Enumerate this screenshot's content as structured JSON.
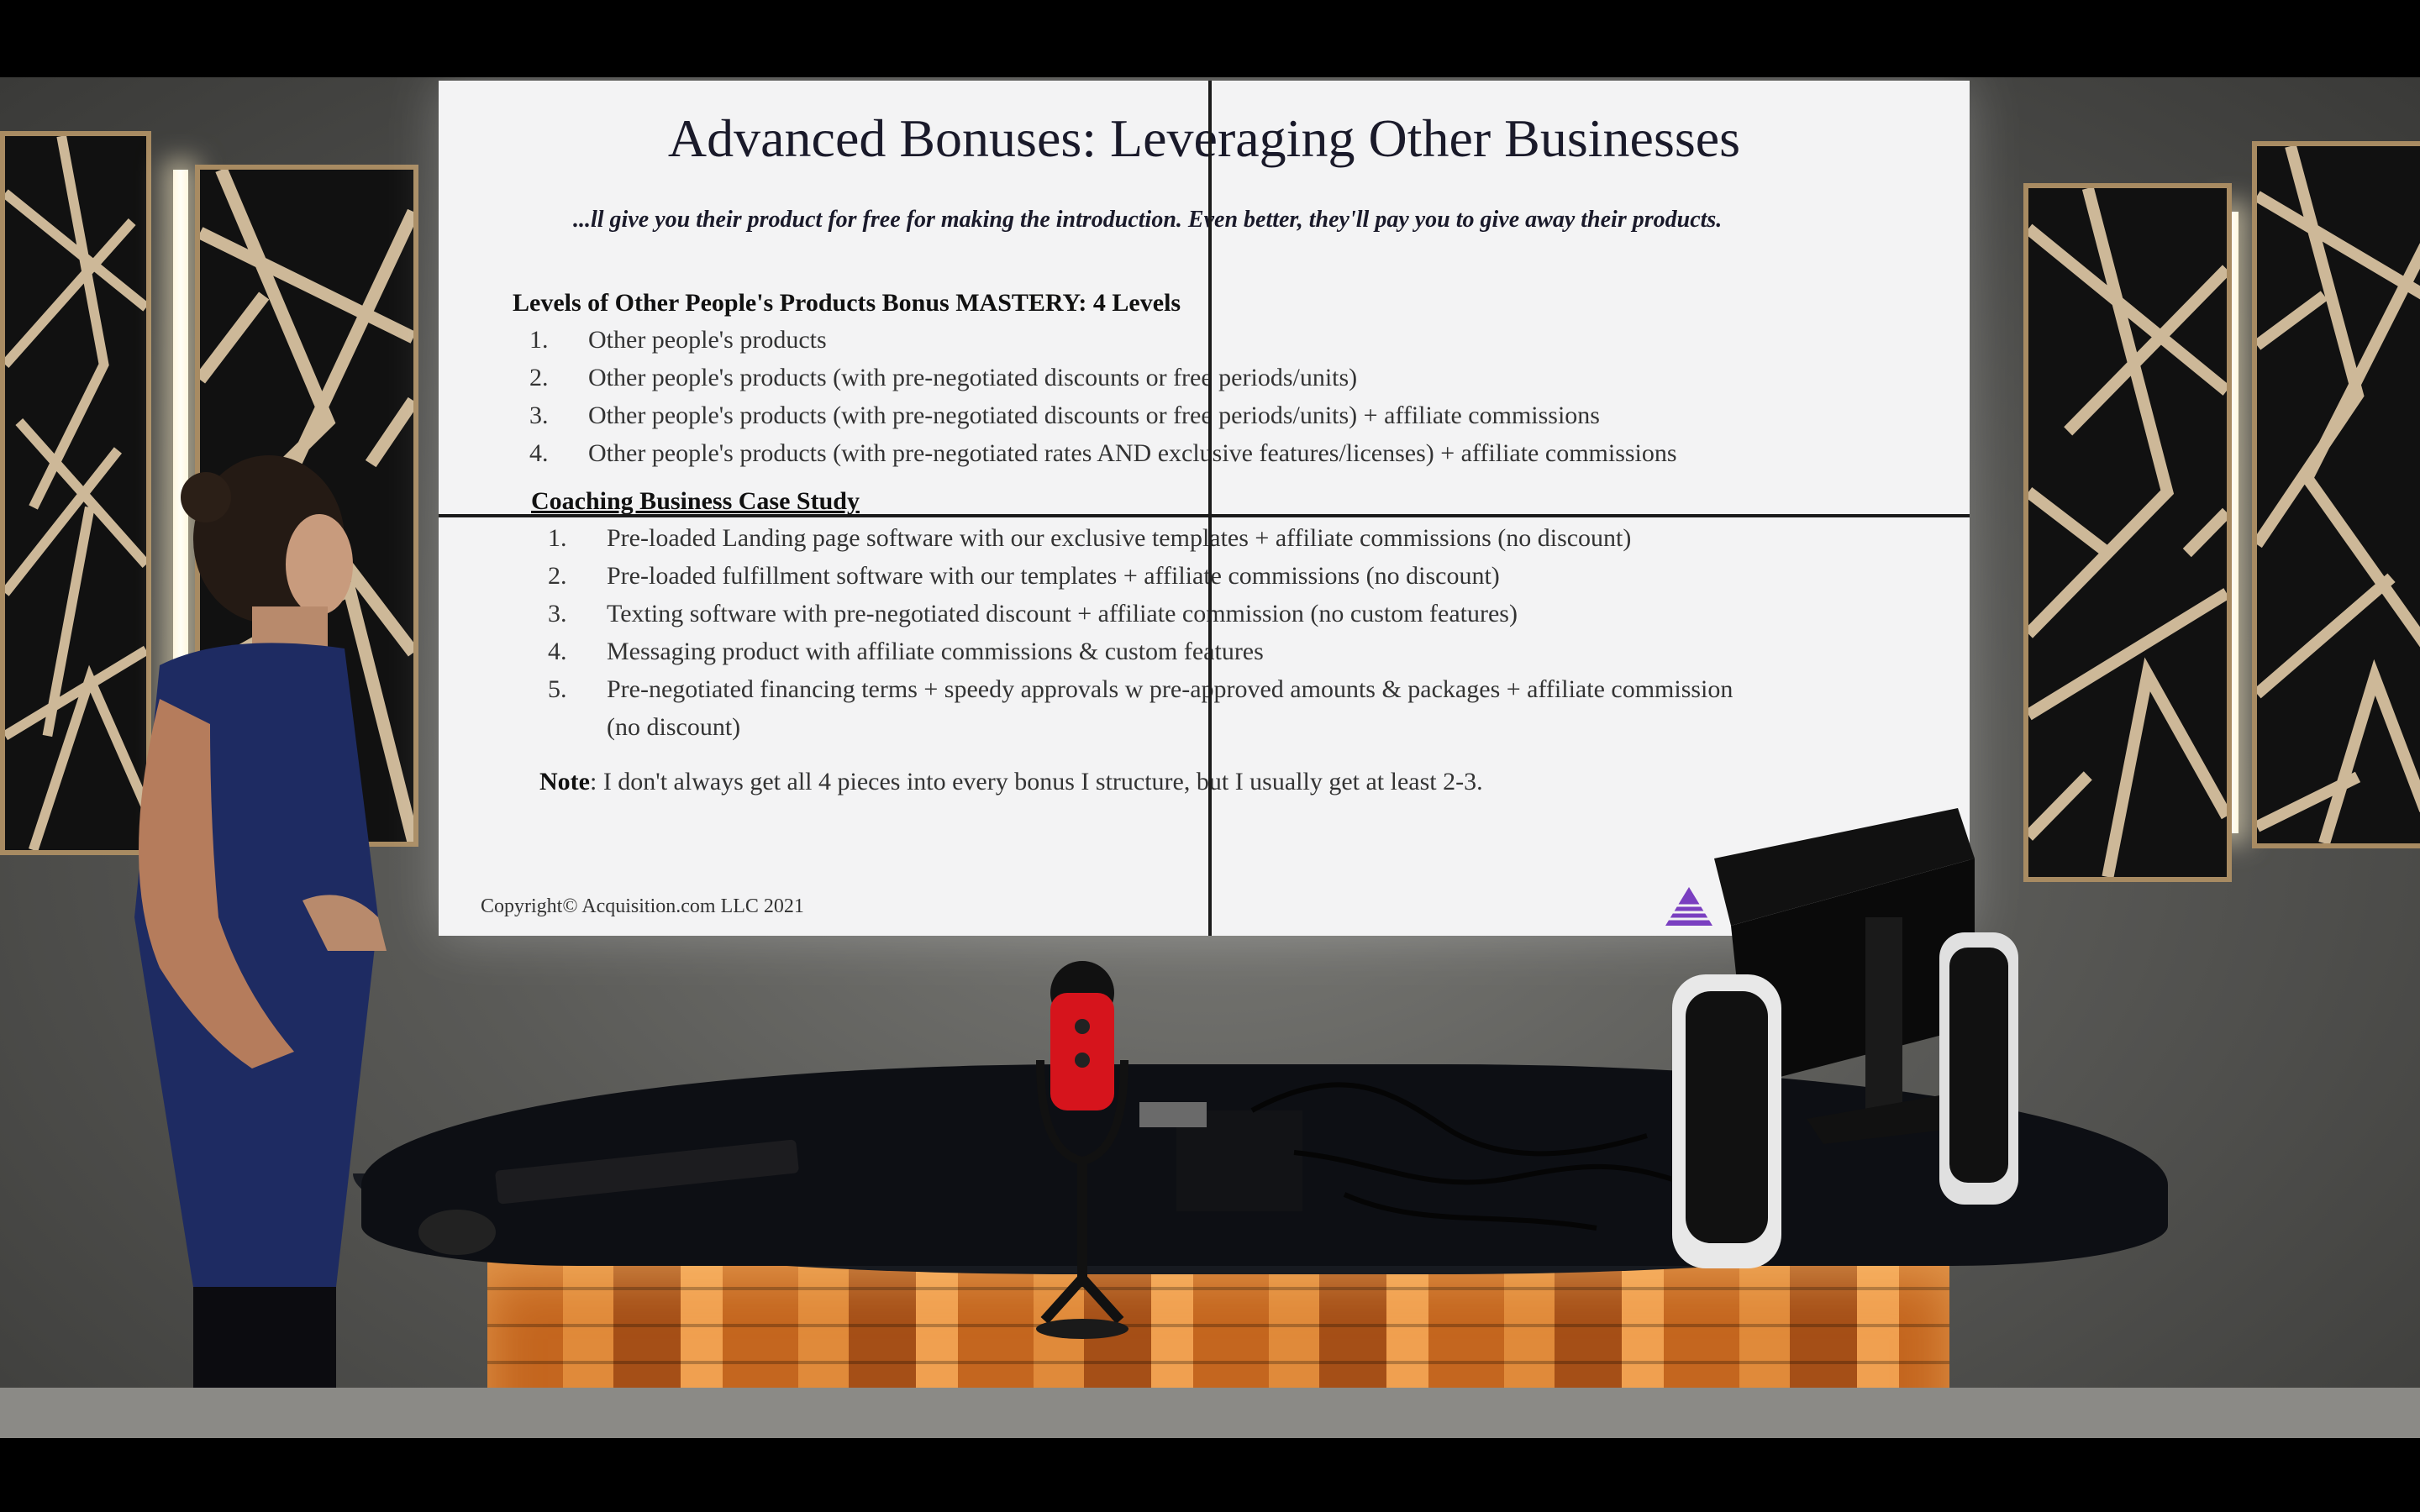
{
  "slide": {
    "title": "Advanced Bonuses: Leveraging Other Businesses",
    "subtitle": "...ll give you their product for free for making the introduction. Even better, they'll pay you to give away their products.",
    "section1": {
      "heading": "Levels of Other People's Products Bonus MASTERY: 4 Levels",
      "items": [
        {
          "num": "1.",
          "text": "Other people's products"
        },
        {
          "num": "2.",
          "text": "Other people's products (with pre-negotiated discounts or free periods/units)"
        },
        {
          "num": "3.",
          "text": "Other people's products (with pre-negotiated discounts or free periods/units) + affiliate commissions"
        },
        {
          "num": "4.",
          "text": "Other people's products (with pre-negotiated rates AND exclusive features/licenses) + affiliate commissions"
        }
      ]
    },
    "section2": {
      "heading": "Coaching Business Case Study",
      "items": [
        {
          "num": "1.",
          "text": "Pre-loaded Landing page software with our exclusive templates + affiliate commissions (no discount)"
        },
        {
          "num": "2.",
          "text": "Pre-loaded fulfillment software with our templates + affiliate commissions (no discount)"
        },
        {
          "num": "3.",
          "text": "Texting software with pre-negotiated discount + affiliate commission (no custom features)"
        },
        {
          "num": "4.",
          "text": "Messaging product with affiliate commissions & custom features"
        },
        {
          "num": "5.",
          "text": "Pre-negotiated financing terms + speedy approvals w pre-approved amounts & packages + affiliate commission"
        },
        {
          "num": "",
          "text": "(no discount)"
        }
      ]
    },
    "note_label": "Note",
    "note_text": ": I don't always get all 4 pieces into every bonus I structure, but I usually get at least 2-3.",
    "copyright": "Copyright© Acquisition.com LLC 2021"
  },
  "colors": {
    "screen": "#f3f3f4",
    "logo": "#7a3fc0",
    "mic": "#d6141c",
    "shirt": "#1e2b62",
    "desk_light": "#e08a3a"
  }
}
